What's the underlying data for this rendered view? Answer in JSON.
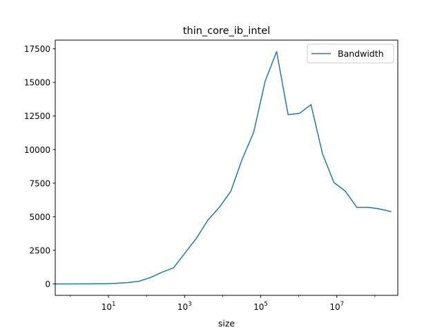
{
  "chart_data": {
    "type": "line",
    "title": "thin_core_ib_intel",
    "xlabel": "size",
    "ylabel": "",
    "xscale": "log",
    "xlim": [
      0.4,
      400000000
    ],
    "ylim": [
      -850,
      18150
    ],
    "grid": false,
    "legend_position": "top-right",
    "x_ticks": [
      {
        "value": 10,
        "base": "10",
        "exp": "1"
      },
      {
        "value": 1000,
        "base": "10",
        "exp": "3"
      },
      {
        "value": 100000,
        "base": "10",
        "exp": "5"
      },
      {
        "value": 10000000,
        "base": "10",
        "exp": "7"
      }
    ],
    "y_ticks": [
      0,
      2500,
      5000,
      7500,
      10000,
      12500,
      15000,
      17500
    ],
    "series": [
      {
        "name": "Bandwidth",
        "color": "#1f77b4",
        "x": [
          0.4,
          1,
          2,
          4,
          8,
          16,
          32,
          64,
          128,
          256,
          512,
          1024,
          2048,
          4096,
          8192,
          16384,
          32768,
          65536,
          131072,
          262144,
          524288,
          1048576,
          2097152,
          4194304,
          8388608,
          16777216,
          33554432,
          67108864,
          134217728,
          268435456
        ],
        "y": [
          0,
          2,
          5,
          10,
          20,
          45,
          100,
          200,
          480,
          870,
          1200,
          2300,
          3400,
          4750,
          5700,
          6900,
          9300,
          11300,
          15100,
          17300,
          12600,
          12700,
          13350,
          9700,
          7550,
          6900,
          5700,
          5700,
          5580,
          5380
        ]
      }
    ]
  }
}
